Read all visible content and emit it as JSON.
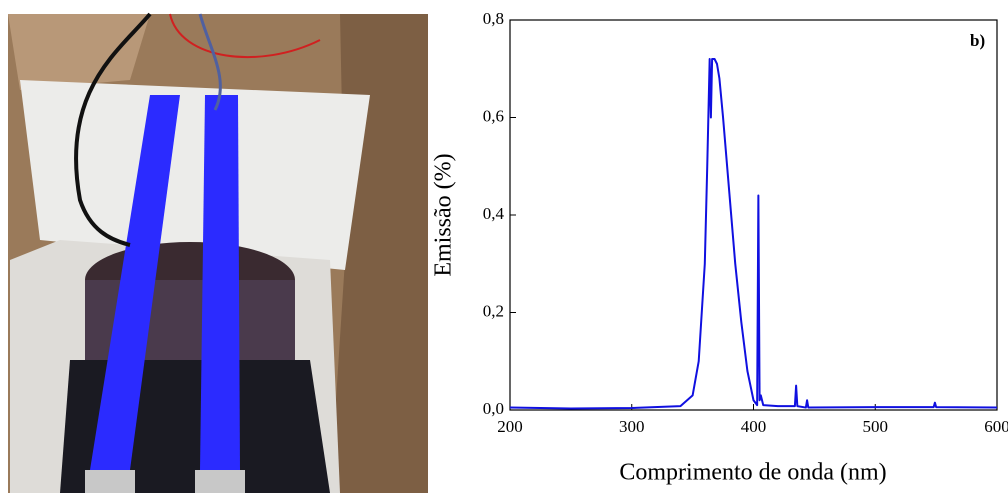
{
  "chart_data": {
    "type": "line",
    "annotation": "b)",
    "xlabel": "Comprimento de onda (nm)",
    "ylabel": "Emissão (%)",
    "color": "#1010e0",
    "x": [
      200,
      250,
      300,
      340,
      350,
      355,
      360,
      362,
      364,
      365,
      366,
      368,
      370,
      372,
      375,
      380,
      385,
      390,
      395,
      400,
      403,
      404,
      405,
      406,
      408,
      420,
      434,
      435,
      436,
      443,
      444,
      445,
      500,
      548,
      549,
      550,
      600
    ],
    "values": [
      0.005,
      0.003,
      0.004,
      0.008,
      0.03,
      0.1,
      0.3,
      0.5,
      0.72,
      0.6,
      0.72,
      0.72,
      0.71,
      0.68,
      0.6,
      0.45,
      0.3,
      0.18,
      0.08,
      0.02,
      0.01,
      0.44,
      0.02,
      0.03,
      0.01,
      0.008,
      0.008,
      0.05,
      0.008,
      0.005,
      0.02,
      0.005,
      0.006,
      0.006,
      0.015,
      0.006,
      0.005
    ],
    "xlim": [
      200,
      600
    ],
    "ylim": [
      0,
      0.8
    ],
    "xticks": [
      200,
      300,
      400,
      500,
      600
    ],
    "yticks": [
      {
        "value": 0,
        "label": "0,0"
      },
      {
        "value": 0.2,
        "label": "0,2"
      },
      {
        "value": 0.4,
        "label": "0,4"
      },
      {
        "value": 0.6,
        "label": "0,6"
      },
      {
        "value": 0.8,
        "label": "0,8"
      }
    ]
  }
}
